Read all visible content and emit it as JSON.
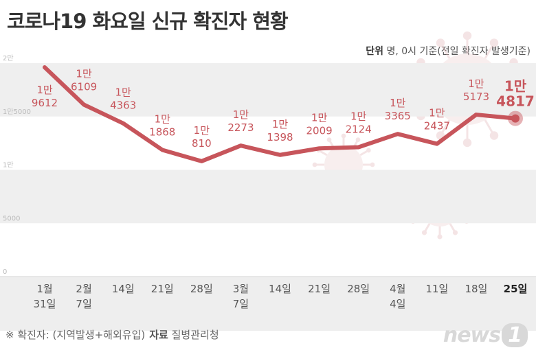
{
  "header": {
    "title": "코로나19 화요일 신규 확진자 현황",
    "unit_label": "단위",
    "unit_text": "명, 0시 기준(전일 확진자 발생기준)"
  },
  "footer": {
    "note": "※ 확진자: (지역발생+해외유입)",
    "source_label": "자료",
    "source": "질병관리청",
    "logo_text": "news",
    "logo_number": "1"
  },
  "colors": {
    "line": "#c7555b",
    "band": "#efefef",
    "highlight": "#c7555b"
  },
  "chart_data": {
    "type": "line",
    "title": "코로나19 화요일 신규 확진자 현황",
    "ylim": [
      0,
      20000
    ],
    "y_ticks": [
      {
        "value": 0,
        "label": "0"
      },
      {
        "value": 5000,
        "label": "5000"
      },
      {
        "value": 10000,
        "label": "1만"
      },
      {
        "value": 15000,
        "label": "1만5000"
      },
      {
        "value": 20000,
        "label": "2만"
      }
    ],
    "categories": [
      [
        "1월",
        "31일"
      ],
      [
        "2월",
        "7일"
      ],
      [
        "14일"
      ],
      [
        "21일"
      ],
      [
        "28일"
      ],
      [
        "3월",
        "7일"
      ],
      [
        "14일"
      ],
      [
        "21일"
      ],
      [
        "28일"
      ],
      [
        "4월",
        "4일"
      ],
      [
        "11일"
      ],
      [
        "18일"
      ],
      [
        "25일"
      ]
    ],
    "values": [
      19612,
      16109,
      14363,
      11868,
      10810,
      12273,
      11398,
      12009,
      12124,
      13365,
      12437,
      15173,
      14817
    ],
    "data_labels": [
      [
        "1만",
        "9612"
      ],
      [
        "1만",
        "6109"
      ],
      [
        "1만",
        "4363"
      ],
      [
        "1만",
        "1868"
      ],
      [
        "1만",
        "810"
      ],
      [
        "1만",
        "2273"
      ],
      [
        "1만",
        "1398"
      ],
      [
        "1만",
        "2009"
      ],
      [
        "1만",
        "2124"
      ],
      [
        "1만",
        "3365"
      ],
      [
        "1만",
        "2437"
      ],
      [
        "1만",
        "5173"
      ],
      [
        "1만",
        "4817"
      ]
    ],
    "highlight_index": 12
  }
}
